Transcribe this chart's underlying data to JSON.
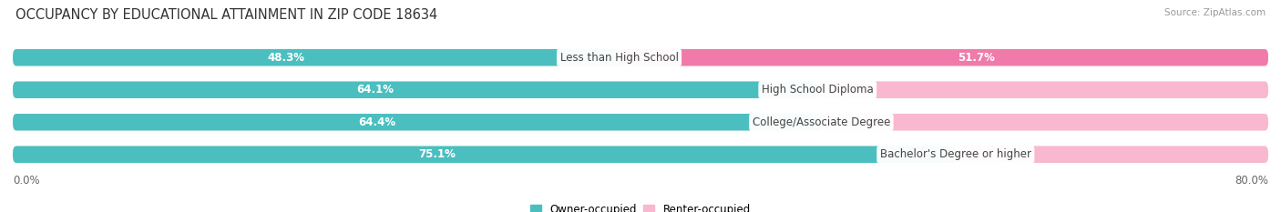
{
  "title": "OCCUPANCY BY EDUCATIONAL ATTAINMENT IN ZIP CODE 18634",
  "source": "Source: ZipAtlas.com",
  "categories": [
    "Less than High School",
    "High School Diploma",
    "College/Associate Degree",
    "Bachelor's Degree or higher"
  ],
  "owner_values": [
    48.3,
    64.1,
    64.4,
    75.1
  ],
  "renter_values": [
    51.7,
    35.9,
    35.6,
    24.9
  ],
  "owner_color": "#4bbfbf",
  "renter_color": "#f07aaa",
  "renter_color_light": "#f9b8cf",
  "bar_bg_color": "#ececec",
  "owner_label": "Owner-occupied",
  "renter_label": "Renter-occupied",
  "x_left_label": "0.0%",
  "x_right_label": "80.0%",
  "title_fontsize": 10.5,
  "source_fontsize": 7.5,
  "bar_label_fontsize": 8.5,
  "cat_label_fontsize": 8.5,
  "legend_fontsize": 8.5,
  "axis_label_fontsize": 8.5,
  "background_color": "#ffffff",
  "axis_max": 80.0
}
